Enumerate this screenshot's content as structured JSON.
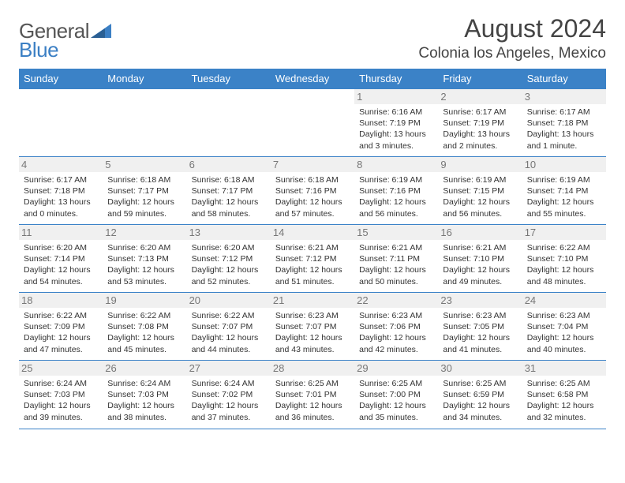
{
  "logo": {
    "general": "General",
    "blue": "Blue"
  },
  "colors": {
    "header_bg": "#3b82c7",
    "header_text": "#ffffff",
    "text": "#333333",
    "daynum_bg": "#f0f0f0",
    "daynum_text": "#777777"
  },
  "title": "August 2024",
  "location": "Colonia los Angeles, Mexico",
  "weekdays": [
    "Sunday",
    "Monday",
    "Tuesday",
    "Wednesday",
    "Thursday",
    "Friday",
    "Saturday"
  ],
  "weeks": [
    [
      null,
      null,
      null,
      null,
      {
        "n": "1",
        "sr": "6:16 AM",
        "ss": "7:19 PM",
        "dl": "13 hours and 3 minutes."
      },
      {
        "n": "2",
        "sr": "6:17 AM",
        "ss": "7:19 PM",
        "dl": "13 hours and 2 minutes."
      },
      {
        "n": "3",
        "sr": "6:17 AM",
        "ss": "7:18 PM",
        "dl": "13 hours and 1 minute."
      }
    ],
    [
      {
        "n": "4",
        "sr": "6:17 AM",
        "ss": "7:18 PM",
        "dl": "13 hours and 0 minutes."
      },
      {
        "n": "5",
        "sr": "6:18 AM",
        "ss": "7:17 PM",
        "dl": "12 hours and 59 minutes."
      },
      {
        "n": "6",
        "sr": "6:18 AM",
        "ss": "7:17 PM",
        "dl": "12 hours and 58 minutes."
      },
      {
        "n": "7",
        "sr": "6:18 AM",
        "ss": "7:16 PM",
        "dl": "12 hours and 57 minutes."
      },
      {
        "n": "8",
        "sr": "6:19 AM",
        "ss": "7:16 PM",
        "dl": "12 hours and 56 minutes."
      },
      {
        "n": "9",
        "sr": "6:19 AM",
        "ss": "7:15 PM",
        "dl": "12 hours and 56 minutes."
      },
      {
        "n": "10",
        "sr": "6:19 AM",
        "ss": "7:14 PM",
        "dl": "12 hours and 55 minutes."
      }
    ],
    [
      {
        "n": "11",
        "sr": "6:20 AM",
        "ss": "7:14 PM",
        "dl": "12 hours and 54 minutes."
      },
      {
        "n": "12",
        "sr": "6:20 AM",
        "ss": "7:13 PM",
        "dl": "12 hours and 53 minutes."
      },
      {
        "n": "13",
        "sr": "6:20 AM",
        "ss": "7:12 PM",
        "dl": "12 hours and 52 minutes."
      },
      {
        "n": "14",
        "sr": "6:21 AM",
        "ss": "7:12 PM",
        "dl": "12 hours and 51 minutes."
      },
      {
        "n": "15",
        "sr": "6:21 AM",
        "ss": "7:11 PM",
        "dl": "12 hours and 50 minutes."
      },
      {
        "n": "16",
        "sr": "6:21 AM",
        "ss": "7:10 PM",
        "dl": "12 hours and 49 minutes."
      },
      {
        "n": "17",
        "sr": "6:22 AM",
        "ss": "7:10 PM",
        "dl": "12 hours and 48 minutes."
      }
    ],
    [
      {
        "n": "18",
        "sr": "6:22 AM",
        "ss": "7:09 PM",
        "dl": "12 hours and 47 minutes."
      },
      {
        "n": "19",
        "sr": "6:22 AM",
        "ss": "7:08 PM",
        "dl": "12 hours and 45 minutes."
      },
      {
        "n": "20",
        "sr": "6:22 AM",
        "ss": "7:07 PM",
        "dl": "12 hours and 44 minutes."
      },
      {
        "n": "21",
        "sr": "6:23 AM",
        "ss": "7:07 PM",
        "dl": "12 hours and 43 minutes."
      },
      {
        "n": "22",
        "sr": "6:23 AM",
        "ss": "7:06 PM",
        "dl": "12 hours and 42 minutes."
      },
      {
        "n": "23",
        "sr": "6:23 AM",
        "ss": "7:05 PM",
        "dl": "12 hours and 41 minutes."
      },
      {
        "n": "24",
        "sr": "6:23 AM",
        "ss": "7:04 PM",
        "dl": "12 hours and 40 minutes."
      }
    ],
    [
      {
        "n": "25",
        "sr": "6:24 AM",
        "ss": "7:03 PM",
        "dl": "12 hours and 39 minutes."
      },
      {
        "n": "26",
        "sr": "6:24 AM",
        "ss": "7:03 PM",
        "dl": "12 hours and 38 minutes."
      },
      {
        "n": "27",
        "sr": "6:24 AM",
        "ss": "7:02 PM",
        "dl": "12 hours and 37 minutes."
      },
      {
        "n": "28",
        "sr": "6:25 AM",
        "ss": "7:01 PM",
        "dl": "12 hours and 36 minutes."
      },
      {
        "n": "29",
        "sr": "6:25 AM",
        "ss": "7:00 PM",
        "dl": "12 hours and 35 minutes."
      },
      {
        "n": "30",
        "sr": "6:25 AM",
        "ss": "6:59 PM",
        "dl": "12 hours and 34 minutes."
      },
      {
        "n": "31",
        "sr": "6:25 AM",
        "ss": "6:58 PM",
        "dl": "12 hours and 32 minutes."
      }
    ]
  ],
  "labels": {
    "sunrise": "Sunrise: ",
    "sunset": "Sunset: ",
    "daylight": "Daylight: "
  }
}
